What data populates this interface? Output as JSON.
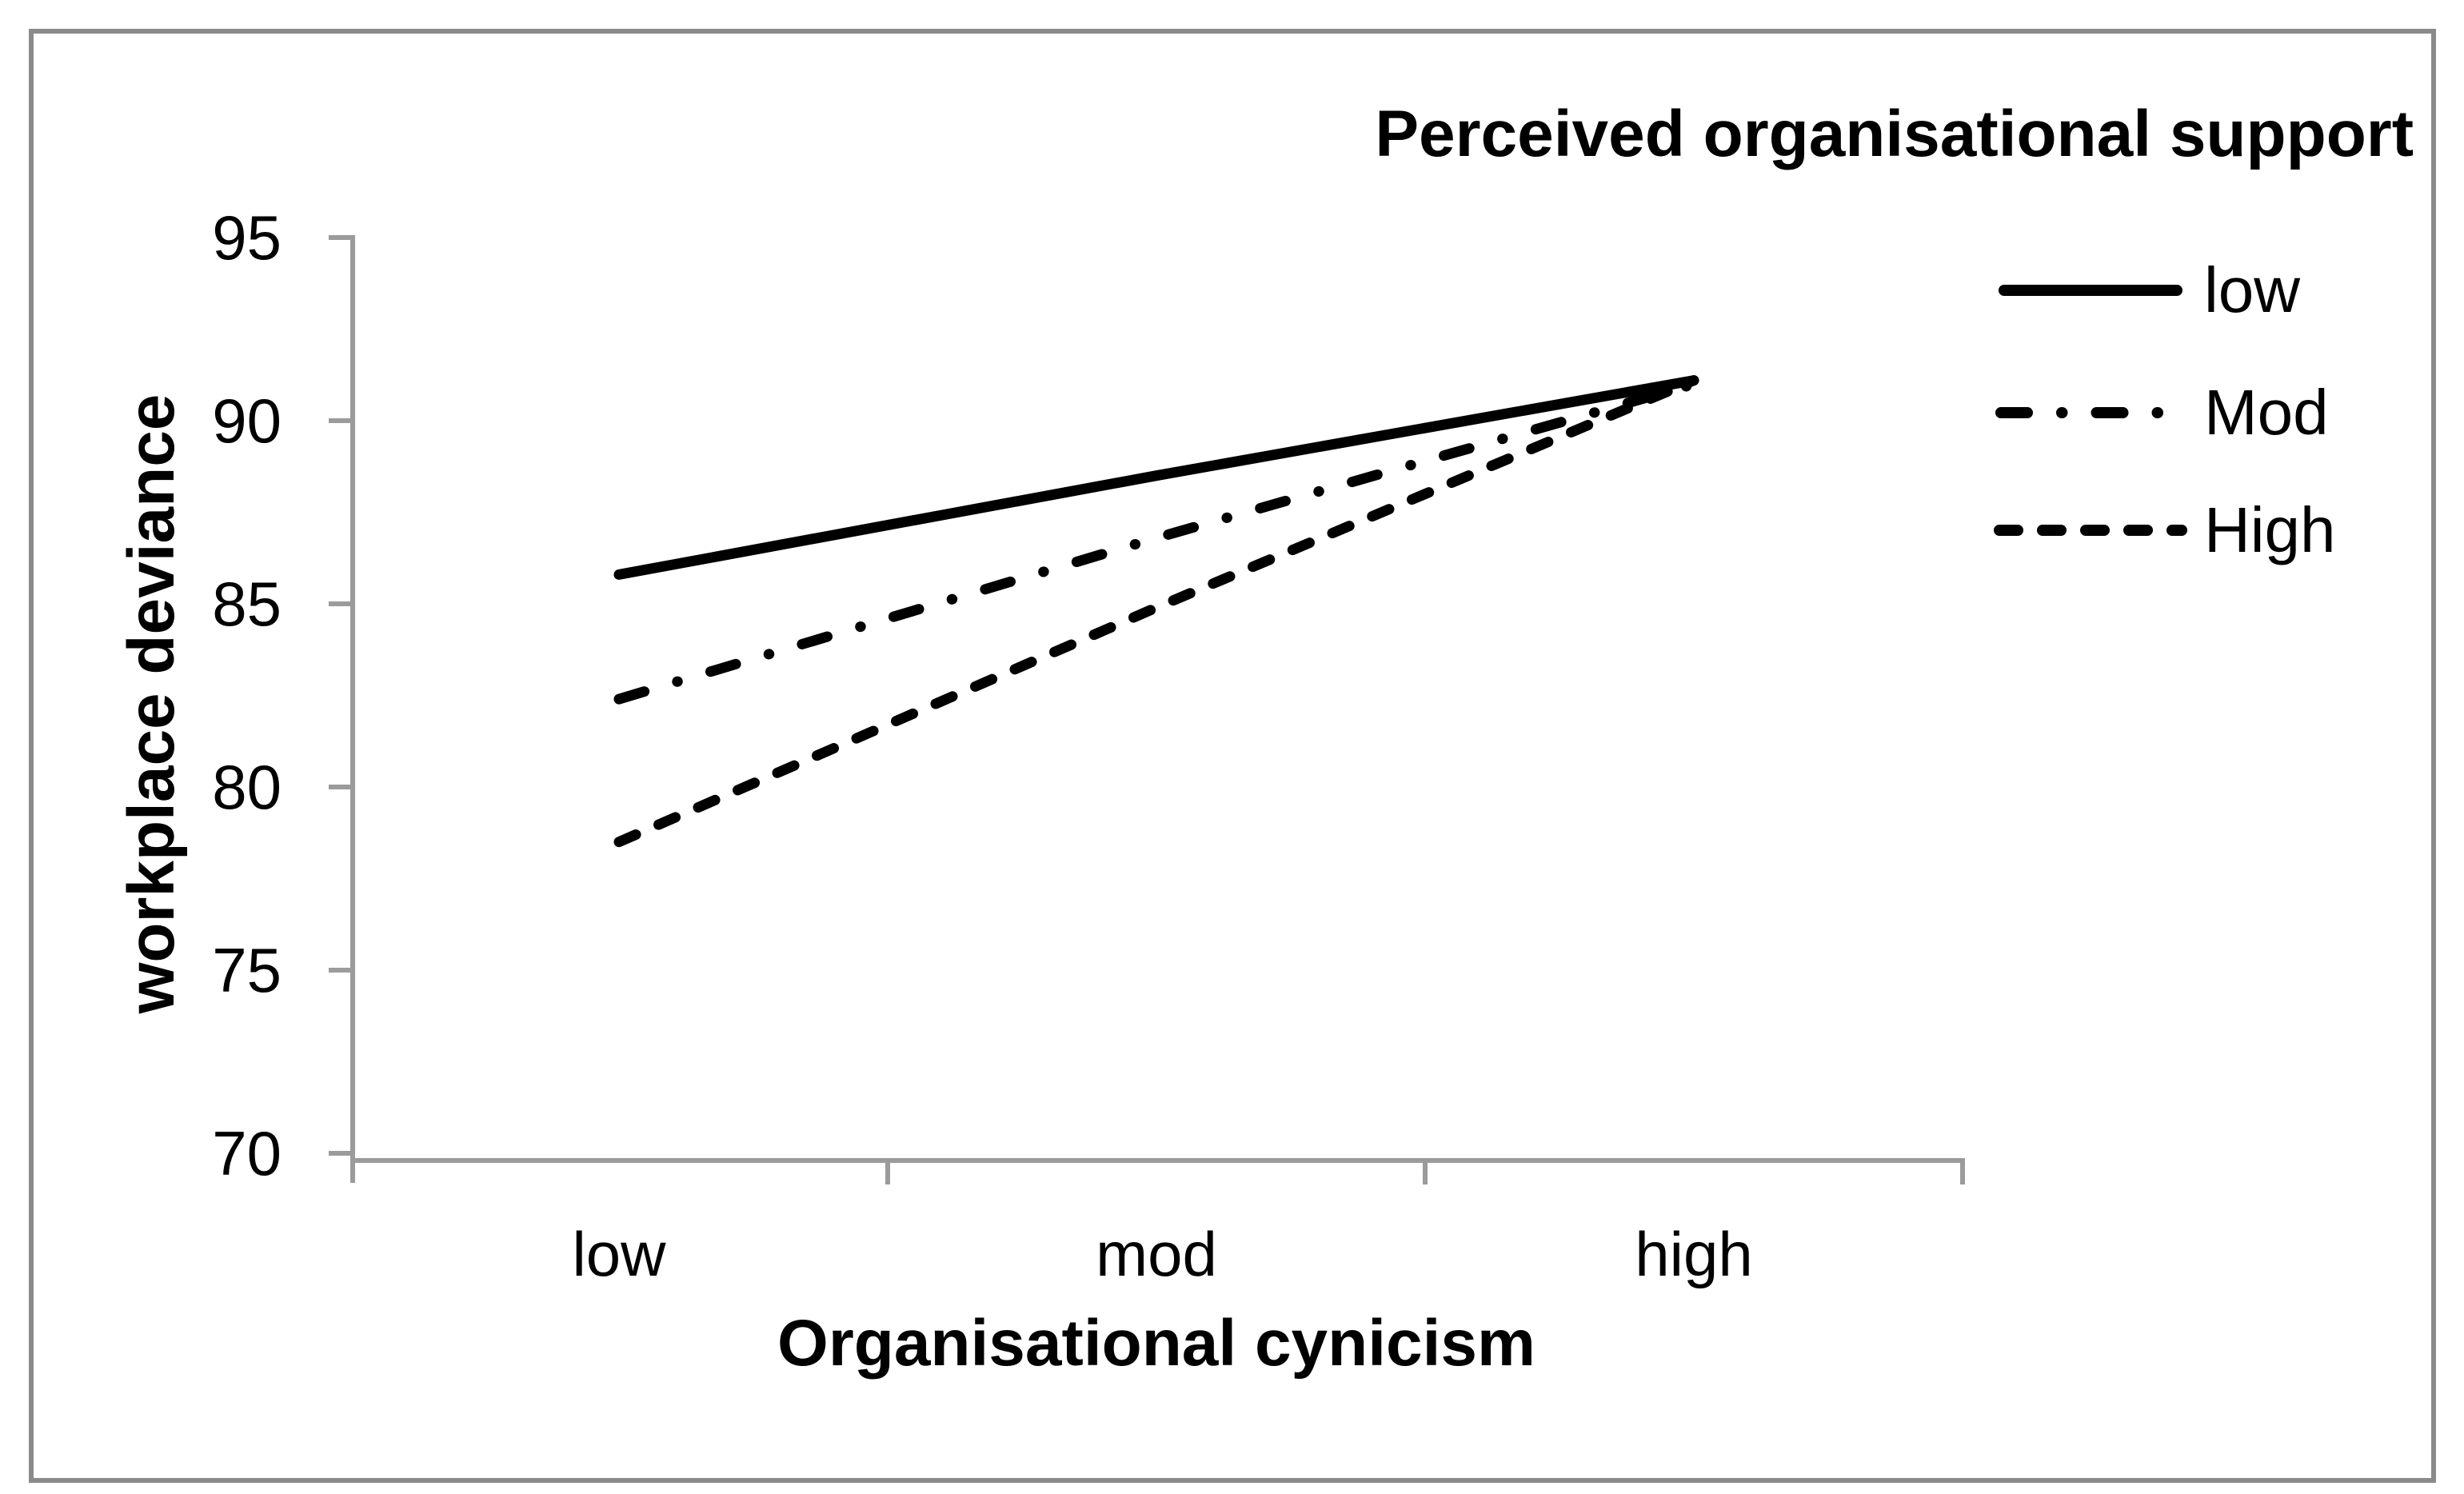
{
  "chart_data": {
    "type": "line",
    "title": "",
    "categories": [
      "low",
      "mod",
      "high"
    ],
    "xlabel": "Organisational cynicism",
    "ylabel": "workplace deviance",
    "ylim": [
      70,
      95
    ],
    "yticks": [
      "95",
      "90",
      "85",
      "80",
      "75",
      "70"
    ],
    "ytick_values": [
      95,
      90,
      85,
      80,
      75,
      70
    ],
    "grid": false,
    "legend_title": "Perceived organisational support",
    "legend_position": "top-right",
    "series": [
      {
        "name": "low",
        "line_style": "solid",
        "values": [
          85.8,
          88.5,
          91.1
        ]
      },
      {
        "name": "Mod",
        "line_style": "dash-dot",
        "values": [
          82.4,
          86.8,
          91.0
        ]
      },
      {
        "name": "High",
        "line_style": "dashed",
        "values": [
          78.5,
          84.9,
          91.1
        ]
      }
    ]
  },
  "legend": {
    "title": "Perceived organisational support",
    "entries": [
      {
        "label": "low"
      },
      {
        "label": "Mod"
      },
      {
        "label": "High"
      }
    ]
  },
  "axes": {
    "y_title": "workplace deviance",
    "x_title": "Organisational cynicism"
  }
}
